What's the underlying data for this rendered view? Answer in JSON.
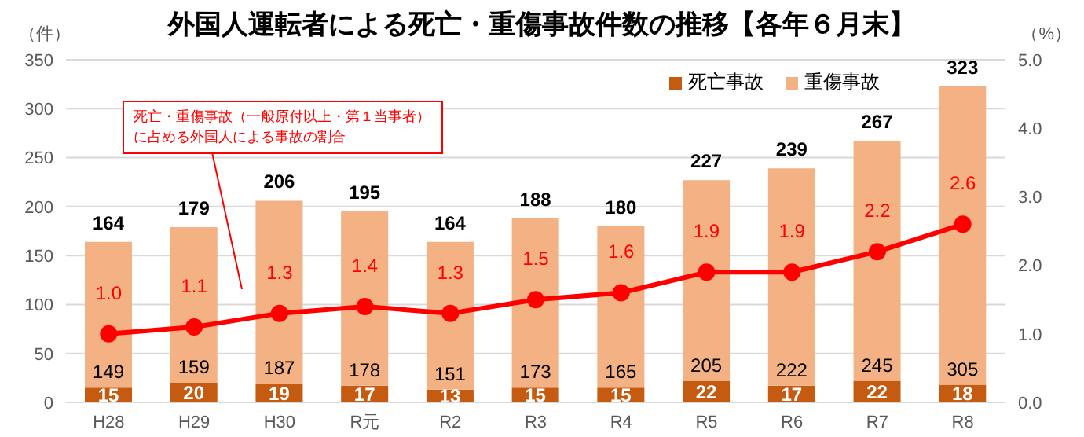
{
  "chart_data": {
    "type": "bar",
    "title": "外国人運転者による死亡・重傷事故件数の推移【各年６月末】",
    "ylabel": "（件）",
    "y2label": "（%）",
    "categories": [
      "H28",
      "H29",
      "H30",
      "R元",
      "R2",
      "R3",
      "R4",
      "R5",
      "R6",
      "R7",
      "R8"
    ],
    "stacked": true,
    "series": [
      {
        "name": "死亡事故",
        "color": "#c55a11",
        "values": [
          15,
          20,
          19,
          17,
          13,
          15,
          15,
          22,
          17,
          22,
          18
        ]
      },
      {
        "name": "重傷事故",
        "color": "#f4b183",
        "values": [
          149,
          159,
          187,
          178,
          151,
          173,
          165,
          205,
          222,
          245,
          305
        ]
      },
      {
        "type": "line",
        "axis": "y2",
        "color": "#ff0000",
        "values": [
          1.0,
          1.1,
          1.3,
          1.4,
          1.3,
          1.5,
          1.6,
          1.9,
          1.9,
          2.2,
          2.6
        ],
        "value_labels": [
          "1.0",
          "1.1",
          "1.3",
          "1.4",
          "1.3",
          "1.5",
          "1.6",
          "1.9",
          "1.9",
          "2.2",
          "2.6"
        ],
        "marker": "circle"
      }
    ],
    "totals": [
      "164",
      "179",
      "206",
      "195",
      "164",
      "188",
      "180",
      "227",
      "239",
      "267",
      "323"
    ],
    "data_labels": true,
    "ylim": [
      0,
      350
    ],
    "yticks": [
      0,
      50,
      100,
      150,
      200,
      250,
      300,
      350
    ],
    "y2lim": [
      0,
      5
    ],
    "y2ticks": [
      {
        "value": 0,
        "label": "0.0"
      },
      {
        "value": 1,
        "label": "1.0"
      },
      {
        "value": 2,
        "label": "2.0"
      },
      {
        "value": 3,
        "label": "3.0"
      },
      {
        "value": 4,
        "label": "4.0"
      },
      {
        "value": 5,
        "label": "5.0"
      }
    ],
    "grid": "y",
    "legend": "top right",
    "annotations": [
      "死亡・重傷事故（一般原付以上・第１当事者）に占める外国人による事故の割合"
    ]
  }
}
